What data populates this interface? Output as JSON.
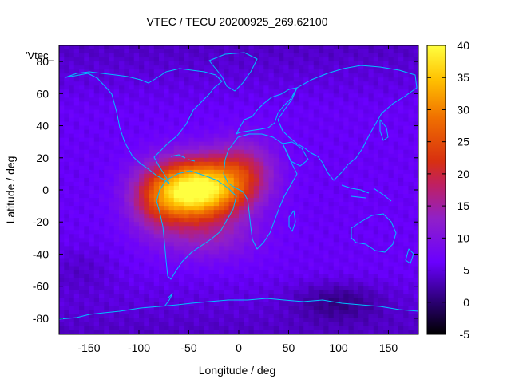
{
  "chart_data": {
    "type": "heatmap",
    "title": "VTEC / TECU 20200925_269.62100",
    "xlabel": "Longitude / deg",
    "ylabel": "Latitude / deg",
    "key_label": "'Vtec_",
    "xlim": [
      -180,
      180
    ],
    "ylim": [
      -90,
      90
    ],
    "x_ticks": [
      -150,
      -100,
      -50,
      0,
      50,
      100,
      150
    ],
    "y_ticks": [
      -80,
      -60,
      -40,
      -20,
      0,
      20,
      40,
      60,
      80
    ],
    "colorbar": {
      "min": -5,
      "max": 40,
      "ticks": [
        -5,
        0,
        5,
        10,
        15,
        20,
        25,
        30,
        35,
        40
      ]
    },
    "grid_resolution": {
      "lon_step": 5,
      "lat_step": 2.5
    },
    "background_level": 6,
    "anomalies": [
      {
        "lon": -40,
        "lat": 0,
        "peak": 34,
        "sigma_lon": 28,
        "sigma_lat": 13
      },
      {
        "lon": -80,
        "lat": -5,
        "peak": 13,
        "sigma_lon": 22,
        "sigma_lat": 14
      },
      {
        "lon": 5,
        "lat": 10,
        "peak": 12,
        "sigma_lon": 22,
        "sigma_lat": 14
      },
      {
        "lon": -30,
        "lat": -30,
        "peak": 6,
        "sigma_lon": 35,
        "sigma_lat": 10
      },
      {
        "lon": 100,
        "lat": -70,
        "peak": -4,
        "sigma_lon": 30,
        "sigma_lat": 8
      },
      {
        "lon": -160,
        "lat": -50,
        "peak": -2,
        "sigma_lon": 25,
        "sigma_lat": 10
      }
    ],
    "coastline_color": "#00bfff"
  }
}
